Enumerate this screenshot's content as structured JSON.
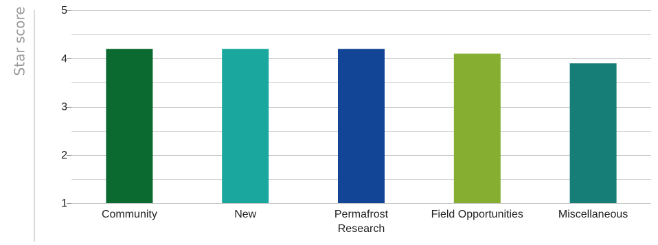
{
  "chart_data": {
    "type": "bar",
    "title": "",
    "xlabel": "",
    "ylabel": "Star score",
    "ylim": [
      1,
      5
    ],
    "yticks": [
      "1",
      "2",
      "3",
      "4",
      "5"
    ],
    "grid": true,
    "categories": [
      "Community",
      "New",
      "Permafrost Research",
      "Field Opportunities",
      "Miscellaneous"
    ],
    "category_lines": [
      [
        "Community"
      ],
      [
        "New"
      ],
      [
        "Permafrost",
        "Research"
      ],
      [
        "Field Opportunities"
      ],
      [
        "Miscellaneous"
      ]
    ],
    "values": [
      4.2,
      4.2,
      4.2,
      4.1,
      3.9
    ],
    "colors": [
      "#0b6a2f",
      "#19a79e",
      "#124595",
      "#86ae31",
      "#167d77"
    ]
  }
}
